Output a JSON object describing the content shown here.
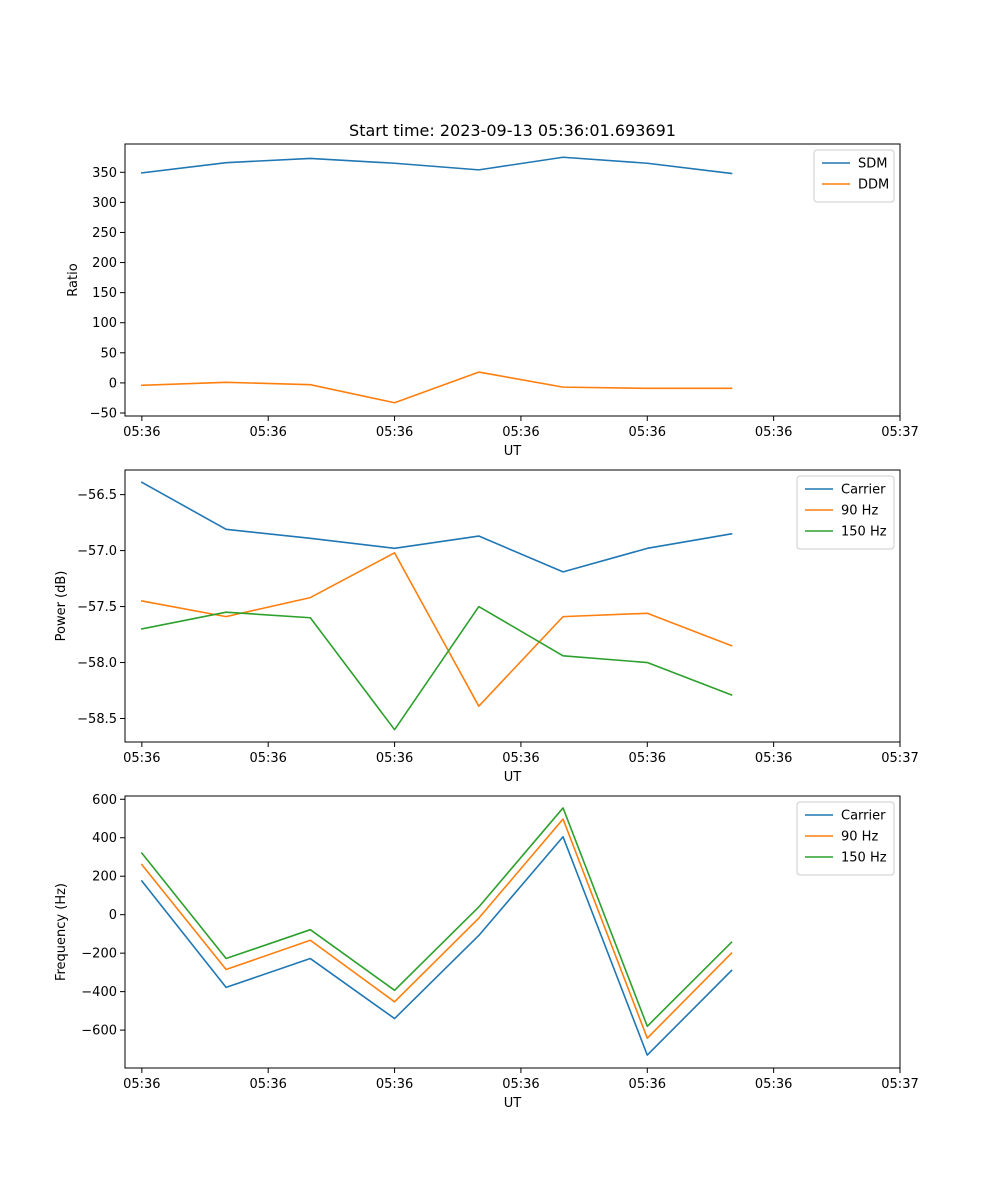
{
  "chart_data": [
    {
      "type": "line",
      "title": "Start time: 2023-09-13 05:36:01.693691",
      "xlabel": "UT",
      "ylabel": "Ratio",
      "x": [
        1,
        2,
        3,
        4,
        5,
        6,
        7,
        8
      ],
      "xlim": [
        0.8,
        10.0
      ],
      "x_ticks": [
        1,
        2.5,
        4,
        5.5,
        7,
        8.5,
        10
      ],
      "x_tick_labels": [
        "05:36",
        "05:36",
        "05:36",
        "05:36",
        "05:36",
        "05:36",
        "05:37"
      ],
      "ylim": [
        -55,
        397
      ],
      "y_ticks": [
        -50,
        0,
        50,
        100,
        150,
        200,
        250,
        300,
        350
      ],
      "y_tick_labels": [
        "−50",
        "0",
        "50",
        "100",
        "150",
        "200",
        "250",
        "300",
        "350"
      ],
      "legend_position": "top-right",
      "series": [
        {
          "name": "SDM",
          "color": "#1f77b4",
          "values": [
            349,
            366,
            373,
            365,
            354,
            375,
            365,
            348
          ]
        },
        {
          "name": "DDM",
          "color": "#ff7f0e",
          "values": [
            -4,
            1,
            -3,
            -33,
            18,
            -7,
            -9,
            -9
          ]
        }
      ]
    },
    {
      "type": "line",
      "title": "",
      "xlabel": "UT",
      "ylabel": "Power (dB)",
      "x": [
        1,
        2,
        3,
        4,
        5,
        6,
        7,
        8
      ],
      "xlim": [
        0.8,
        10.0
      ],
      "x_ticks": [
        1,
        2.5,
        4,
        5.5,
        7,
        8.5,
        10
      ],
      "x_tick_labels": [
        "05:36",
        "05:36",
        "05:36",
        "05:36",
        "05:36",
        "05:36",
        "05:37"
      ],
      "ylim": [
        -58.71,
        -56.28
      ],
      "y_ticks": [
        -58.5,
        -58.0,
        -57.5,
        -57.0,
        -56.5
      ],
      "y_tick_labels": [
        "−58.5",
        "−58.0",
        "−57.5",
        "−57.0",
        "−56.5"
      ],
      "legend_position": "top-right",
      "series": [
        {
          "name": "Carrier",
          "color": "#1f77b4",
          "values": [
            -56.39,
            -56.81,
            -56.89,
            -56.98,
            -56.87,
            -57.19,
            -56.98,
            -56.85
          ]
        },
        {
          "name": "90 Hz",
          "color": "#ff7f0e",
          "values": [
            -57.45,
            -57.59,
            -57.42,
            -57.02,
            -58.39,
            -57.59,
            -57.56,
            -57.85
          ]
        },
        {
          "name": "150 Hz",
          "color": "#2ca02c",
          "values": [
            -57.7,
            -57.55,
            -57.6,
            -58.6,
            -57.5,
            -57.94,
            -58.0,
            -58.29
          ]
        }
      ]
    },
    {
      "type": "line",
      "title": "",
      "xlabel": "UT",
      "ylabel": "Frequency (Hz)",
      "x": [
        1,
        2,
        3,
        4,
        5,
        6,
        7,
        8
      ],
      "xlim": [
        0.8,
        10.0
      ],
      "x_ticks": [
        1,
        2.5,
        4,
        5.5,
        7,
        8.5,
        10
      ],
      "x_tick_labels": [
        "05:36",
        "05:36",
        "05:36",
        "05:36",
        "05:36",
        "05:36",
        "05:37"
      ],
      "ylim": [
        -797,
        617
      ],
      "y_ticks": [
        -600,
        -400,
        -200,
        0,
        200,
        400,
        600
      ],
      "y_tick_labels": [
        "−600",
        "−400",
        "−200",
        "0",
        "200",
        "400",
        "600"
      ],
      "legend_position": "top-right",
      "series": [
        {
          "name": "Carrier",
          "color": "#1f77b4",
          "values": [
            175,
            -378,
            -228,
            -540,
            -108,
            405,
            -730,
            -290
          ]
        },
        {
          "name": "90 Hz",
          "color": "#ff7f0e",
          "values": [
            260,
            -285,
            -133,
            -453,
            -18,
            497,
            -642,
            -200
          ]
        },
        {
          "name": "150 Hz",
          "color": "#2ca02c",
          "values": [
            320,
            -228,
            -78,
            -393,
            40,
            555,
            -580,
            -143
          ]
        }
      ]
    }
  ]
}
